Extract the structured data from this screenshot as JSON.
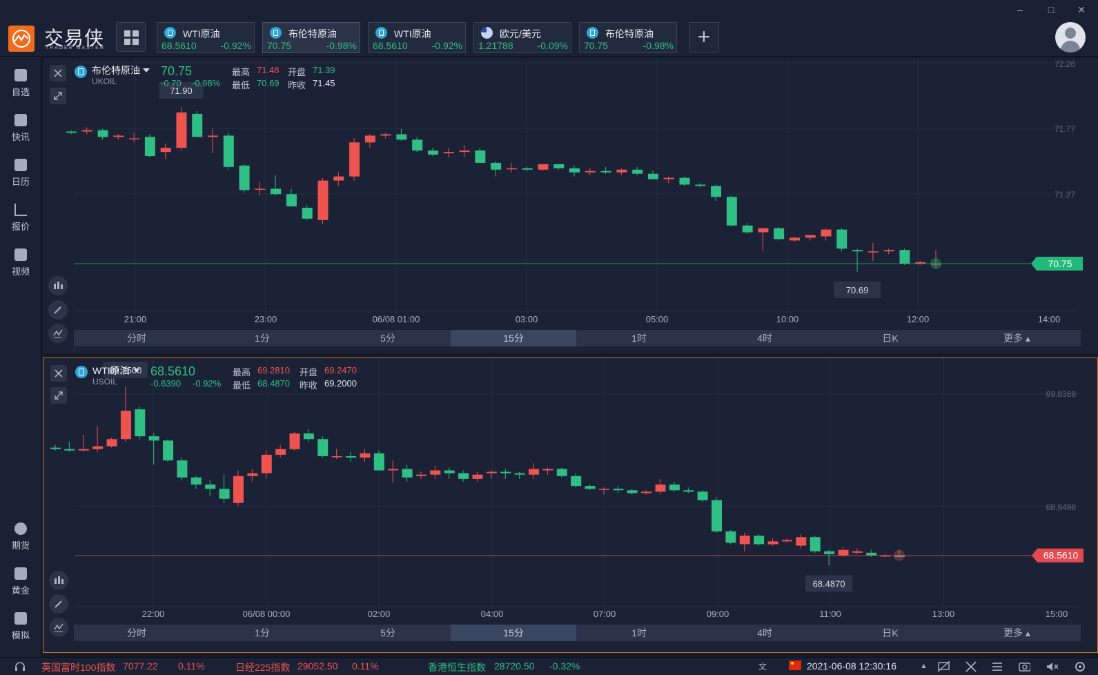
{
  "app": {
    "brand": "交易侠",
    "brand_sub": "TRADER MASTER"
  },
  "quote_tabs": [
    {
      "name": "WTI原油",
      "price": "68.5610",
      "change": "-0.92%"
    },
    {
      "name": "布伦特原油",
      "price": "70.75",
      "change": "-0.98%"
    },
    {
      "name": "WTI原油",
      "price": "68.5610",
      "change": "-0.92%"
    },
    {
      "name": "欧元/美元",
      "price": "1.21788",
      "change": "-0.09%"
    },
    {
      "name": "布伦特原油",
      "price": "70.75",
      "change": "-0.98%"
    }
  ],
  "sidebar": {
    "items": [
      {
        "label": "自选",
        "icon": "star-bookmark-icon"
      },
      {
        "label": "快讯",
        "icon": "news-icon"
      },
      {
        "label": "日历",
        "icon": "calendar-icon"
      },
      {
        "label": "报价",
        "icon": "trend-icon"
      },
      {
        "label": "视频",
        "icon": "play-icon"
      },
      {
        "label": "期货",
        "icon": "futures-icon"
      },
      {
        "label": "黄金",
        "icon": "gold-icon"
      },
      {
        "label": "模拟",
        "icon": "simulate-icon"
      }
    ]
  },
  "top_chart": {
    "symbol": "布伦特原油",
    "code": "UKOIL",
    "price": "70.75",
    "change": "-0.70",
    "change_pct": "-0.98%",
    "high_label": "最高",
    "high": "71.48",
    "open_label": "开盘",
    "open": "71.39",
    "low_label": "最低",
    "low": "70.69",
    "prev_label": "昨收",
    "prev_close": "71.45",
    "max_marker": "71.90",
    "min_marker": "70.69",
    "current_tag": "70.75"
  },
  "bottom_chart": {
    "symbol": "WTI原油",
    "code": "USOIL",
    "price": "68.5610",
    "change": "-0.6390",
    "change_pct": "-0.92%",
    "high_label": "最高",
    "high": "69.2810",
    "open_label": "开盘",
    "open": "69.2470",
    "low_label": "最低",
    "low": "68.4870",
    "prev_label": "昨收",
    "prev_close": "69.2000",
    "max_marker": "69.7500",
    "min_marker": "68.4870",
    "current_tag": "68.5610"
  },
  "timeframes": [
    "分时",
    "1分",
    "5分",
    "15分",
    "1时",
    "4时",
    "日K",
    "更多"
  ],
  "status_bar": {
    "items": [
      {
        "name": "英国富时100指数",
        "value": "7077.22",
        "change": "0.11%"
      },
      {
        "name": "日经225指数",
        "value": "29052.50",
        "change": "0.11%"
      },
      {
        "name": "香港恒生指数",
        "value": "28720.50",
        "change": "-0.32%"
      }
    ],
    "datetime": "2021-06-08 12:30:16"
  },
  "colors": {
    "up": "#ef5350",
    "down": "#2fbf84",
    "accent": "#ef6c1f",
    "panel_border": "#d5742b"
  },
  "chart_data": [
    {
      "type": "candlestick",
      "title": "布伦特原油 UKOIL",
      "x_ticks": [
        "21:00",
        "23:00",
        "06/08 01:00",
        "03:00",
        "05:00",
        "10:00",
        "12:00",
        "14:00"
      ],
      "y_ticks": [
        "72.26",
        "71.77",
        "71.27"
      ],
      "ylim": [
        70.4,
        72.26
      ],
      "ohlc": [
        [
          71.72,
          71.73,
          71.7,
          71.71
        ],
        [
          71.72,
          71.75,
          71.7,
          71.73
        ],
        [
          71.73,
          71.74,
          71.66,
          71.68
        ],
        [
          71.68,
          71.7,
          71.66,
          71.69
        ],
        [
          71.67,
          71.71,
          71.64,
          71.67
        ],
        [
          71.68,
          71.7,
          71.53,
          71.54
        ],
        [
          71.57,
          71.63,
          71.52,
          71.6
        ],
        [
          71.6,
          71.9,
          71.58,
          71.86
        ],
        [
          71.85,
          71.87,
          71.68,
          71.68
        ],
        [
          71.68,
          71.74,
          71.56,
          71.69
        ],
        [
          71.69,
          71.71,
          71.44,
          71.46
        ],
        [
          71.47,
          71.48,
          71.27,
          71.29
        ],
        [
          71.3,
          71.35,
          71.25,
          71.3
        ],
        [
          71.3,
          71.4,
          71.25,
          71.26
        ],
        [
          71.26,
          71.3,
          71.17,
          71.17
        ],
        [
          71.16,
          71.18,
          71.07,
          71.08
        ],
        [
          71.07,
          71.38,
          71.04,
          71.36
        ],
        [
          71.36,
          71.42,
          71.32,
          71.39
        ],
        [
          71.39,
          71.67,
          71.36,
          71.64
        ],
        [
          71.64,
          71.7,
          71.6,
          71.69
        ],
        [
          71.69,
          71.71,
          71.67,
          71.7
        ],
        [
          71.7,
          71.74,
          71.65,
          71.66
        ],
        [
          71.66,
          71.68,
          71.57,
          71.58
        ],
        [
          71.58,
          71.6,
          71.54,
          71.55
        ],
        [
          71.56,
          71.6,
          71.53,
          71.57
        ],
        [
          71.57,
          71.62,
          71.53,
          71.58
        ],
        [
          71.58,
          71.6,
          71.49,
          71.49
        ],
        [
          71.49,
          71.5,
          71.39,
          71.44
        ],
        [
          71.45,
          71.49,
          71.42,
          71.45
        ],
        [
          71.45,
          71.46,
          71.43,
          71.44
        ],
        [
          71.44,
          71.48,
          71.43,
          71.48
        ],
        [
          71.48,
          71.48,
          71.44,
          71.45
        ],
        [
          71.45,
          71.47,
          71.39,
          71.42
        ],
        [
          71.42,
          71.45,
          71.4,
          71.43
        ],
        [
          71.43,
          71.46,
          71.41,
          71.42
        ],
        [
          71.42,
          71.45,
          71.4,
          71.44
        ],
        [
          71.44,
          71.46,
          71.4,
          71.41
        ],
        [
          71.41,
          71.43,
          71.37,
          71.37
        ],
        [
          71.37,
          71.39,
          71.34,
          71.38
        ],
        [
          71.38,
          71.39,
          71.32,
          71.33
        ],
        [
          71.33,
          71.34,
          71.31,
          71.32
        ],
        [
          71.32,
          71.33,
          71.21,
          71.24
        ],
        [
          71.24,
          71.25,
          71.02,
          71.03
        ],
        [
          71.03,
          71.05,
          70.97,
          70.98
        ],
        [
          70.98,
          71.0,
          70.84,
          71.01
        ],
        [
          71.01,
          71.02,
          70.92,
          70.93
        ],
        [
          70.92,
          70.95,
          70.91,
          70.94
        ],
        [
          70.94,
          70.96,
          70.92,
          70.96
        ],
        [
          70.95,
          71.01,
          70.92,
          71.0
        ],
        [
          71.0,
          71.01,
          70.84,
          70.86
        ],
        [
          70.85,
          70.86,
          70.69,
          70.84
        ],
        [
          70.84,
          70.9,
          70.77,
          70.84
        ],
        [
          70.84,
          70.86,
          70.82,
          70.85
        ],
        [
          70.85,
          70.86,
          70.74,
          70.75
        ],
        [
          70.75,
          70.77,
          70.74,
          70.76
        ],
        [
          70.75,
          70.85,
          70.72,
          70.75
        ]
      ]
    },
    {
      "type": "candlestick",
      "title": "WTI原油 USOIL",
      "x_ticks": [
        "22:00",
        "06/08 00:00",
        "02:00",
        "04:00",
        "07:00",
        "09:00",
        "11:00",
        "13:00",
        "15:00"
      ],
      "y_ticks": [
        "69.8389",
        "68.9498"
      ],
      "ylim": [
        68.2,
        69.95
      ],
      "ohlc": [
        [
          69.32,
          69.34,
          69.3,
          69.31
        ],
        [
          69.31,
          69.36,
          69.29,
          69.3
        ],
        [
          69.3,
          69.41,
          69.29,
          69.31
        ],
        [
          69.31,
          69.47,
          69.29,
          69.33
        ],
        [
          69.33,
          69.39,
          69.32,
          69.38
        ],
        [
          69.38,
          69.75,
          69.36,
          69.58
        ],
        [
          69.59,
          69.61,
          69.38,
          69.4
        ],
        [
          69.4,
          69.42,
          69.2,
          69.37
        ],
        [
          69.37,
          69.38,
          69.22,
          69.23
        ],
        [
          69.23,
          69.25,
          69.09,
          69.11
        ],
        [
          69.11,
          69.12,
          69.03,
          69.06
        ],
        [
          69.06,
          69.09,
          68.98,
          69.03
        ],
        [
          69.03,
          69.13,
          68.93,
          68.96
        ],
        [
          68.93,
          69.16,
          68.91,
          69.12
        ],
        [
          69.12,
          69.17,
          69.08,
          69.14
        ],
        [
          69.14,
          69.3,
          69.1,
          69.27
        ],
        [
          69.27,
          69.34,
          69.25,
          69.31
        ],
        [
          69.31,
          69.43,
          69.3,
          69.42
        ],
        [
          69.42,
          69.45,
          69.36,
          69.38
        ],
        [
          69.38,
          69.4,
          69.25,
          69.26
        ],
        [
          69.26,
          69.31,
          69.24,
          69.26
        ],
        [
          69.26,
          69.29,
          69.22,
          69.25
        ],
        [
          69.25,
          69.31,
          69.22,
          69.28
        ],
        [
          69.28,
          69.3,
          69.16,
          69.16
        ],
        [
          69.16,
          69.23,
          69.07,
          69.17
        ],
        [
          69.17,
          69.2,
          69.08,
          69.11
        ],
        [
          69.12,
          69.15,
          69.1,
          69.13
        ],
        [
          69.13,
          69.19,
          69.1,
          69.16
        ],
        [
          69.16,
          69.18,
          69.1,
          69.14
        ],
        [
          69.14,
          69.16,
          69.08,
          69.1
        ],
        [
          69.1,
          69.15,
          69.08,
          69.13
        ],
        [
          69.14,
          69.16,
          69.1,
          69.15
        ],
        [
          69.15,
          69.17,
          69.1,
          69.14
        ],
        [
          69.14,
          69.15,
          69.1,
          69.13
        ],
        [
          69.13,
          69.21,
          69.1,
          69.17
        ],
        [
          69.16,
          69.18,
          69.13,
          69.17
        ],
        [
          69.17,
          69.18,
          69.11,
          69.12
        ],
        [
          69.12,
          69.14,
          69.04,
          69.05
        ],
        [
          69.05,
          69.06,
          69.02,
          69.03
        ],
        [
          69.03,
          69.04,
          68.99,
          69.03
        ],
        [
          69.03,
          69.05,
          69.0,
          69.02
        ],
        [
          69.02,
          69.03,
          68.99,
          69.0
        ],
        [
          69.0,
          69.02,
          68.99,
          69.01
        ],
        [
          69.01,
          69.1,
          68.99,
          69.06
        ],
        [
          69.06,
          69.08,
          69.01,
          69.02
        ],
        [
          69.02,
          69.04,
          69.0,
          69.01
        ],
        [
          69.01,
          69.02,
          68.94,
          68.95
        ],
        [
          68.95,
          68.97,
          68.72,
          68.73
        ],
        [
          68.73,
          68.74,
          68.64,
          68.65
        ],
        [
          68.64,
          68.72,
          68.59,
          68.7
        ],
        [
          68.7,
          68.71,
          68.63,
          68.64
        ],
        [
          68.64,
          68.68,
          68.63,
          68.66
        ],
        [
          68.66,
          68.68,
          68.65,
          68.67
        ],
        [
          68.63,
          68.71,
          68.61,
          68.69
        ],
        [
          68.69,
          68.7,
          68.58,
          68.59
        ],
        [
          68.59,
          68.6,
          68.49,
          68.57
        ],
        [
          68.56,
          68.62,
          68.55,
          68.6
        ],
        [
          68.58,
          68.61,
          68.57,
          68.59
        ],
        [
          68.58,
          68.6,
          68.55,
          68.56
        ],
        [
          68.56,
          68.57,
          68.55,
          68.56
        ],
        [
          68.56,
          68.6,
          68.55,
          68.55
        ]
      ]
    }
  ]
}
